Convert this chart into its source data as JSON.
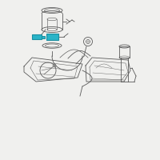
{
  "bg_color": "#f0f0ee",
  "line_color": "#5a5a5a",
  "highlight_color": "#2ab4c8",
  "highlight_dark": "#1a8fa0",
  "lw": 0.6,
  "fig_width": 2.0,
  "fig_height": 2.0,
  "dpi": 100
}
